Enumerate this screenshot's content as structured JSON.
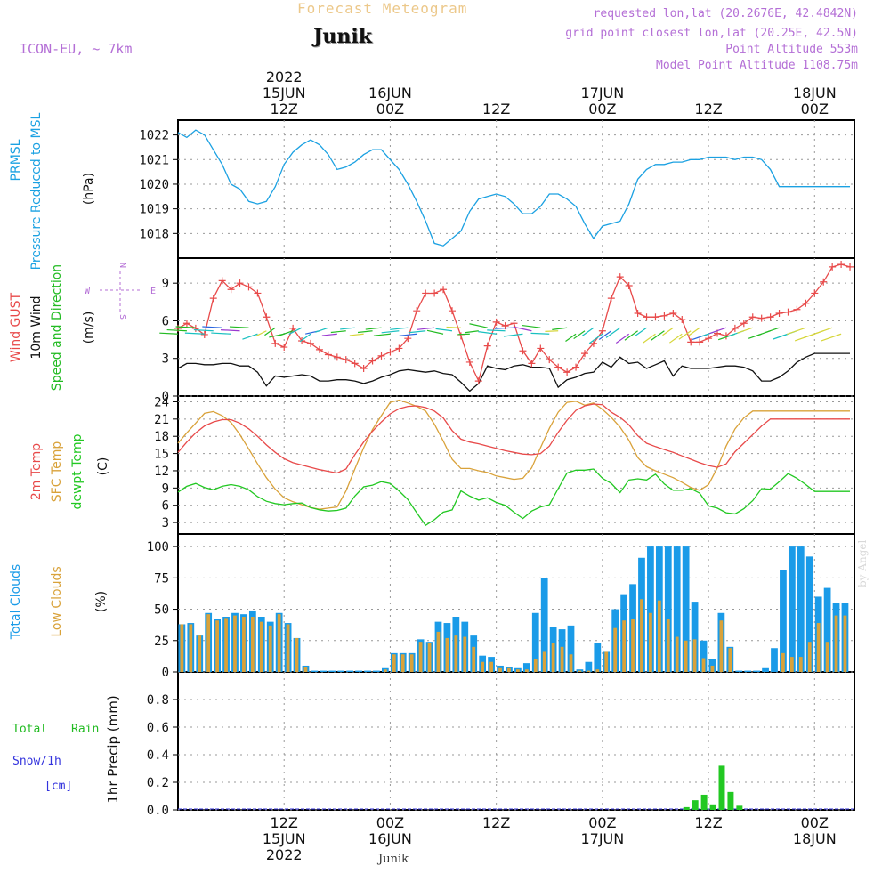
{
  "header": {
    "title": "Forecast Meteogram",
    "station": "Junik",
    "model": "ICON-EU, ~ 7km",
    "requested": "requested lon,lat (20.2676E, 42.4842N)",
    "gridpoint": "grid point closest lon,lat (20.25E, 42.5N)",
    "point_altitude": "Point Altitude 553m",
    "model_altitude": "Model Point Altitude 1108.75m",
    "footer": "Junik",
    "credit": "by Angel"
  },
  "colors": {
    "pressure": "#1ba1e2",
    "gust": "#e84a4a",
    "wind": "#111111",
    "wind_dir": "#22bb22",
    "temp": "#e84a4a",
    "sfc_temp": "#d9a23a",
    "dewpt": "#22c822",
    "total_cloud": "#1a9be8",
    "low_cloud": "#d9a23a",
    "rain": "#22c822",
    "snow": "#3333dd",
    "purple": "#b46fd6"
  },
  "time_axis": {
    "top_labels": [
      {
        "h": 12,
        "l1": "2022",
        "l2": "15JUN",
        "l3": "12Z"
      },
      {
        "h": 24,
        "l1": "",
        "l2": "16JUN",
        "l3": "00Z"
      },
      {
        "h": 36,
        "l1": "",
        "l2": "",
        "l3": "12Z"
      },
      {
        "h": 48,
        "l1": "",
        "l2": "17JUN",
        "l3": "00Z"
      },
      {
        "h": 60,
        "l1": "",
        "l2": "",
        "l3": "12Z"
      },
      {
        "h": 72,
        "l1": "",
        "l2": "18JUN",
        "l3": "00Z"
      }
    ],
    "bottom_labels": [
      {
        "h": 12,
        "l1": "12Z",
        "l2": "15JUN",
        "l3": "2022"
      },
      {
        "h": 24,
        "l1": "00Z",
        "l2": "16JUN",
        "l3": ""
      },
      {
        "h": 36,
        "l1": "12Z",
        "l2": "",
        "l3": ""
      },
      {
        "h": 48,
        "l1": "00Z",
        "l2": "17JUN",
        "l3": ""
      },
      {
        "h": 60,
        "l1": "12Z",
        "l2": "",
        "l3": ""
      },
      {
        "h": 72,
        "l1": "00Z",
        "l2": "18JUN",
        "l3": ""
      }
    ]
  },
  "chart_data": [
    {
      "type": "line",
      "id": "pressure",
      "title": "PRMSL Pressure Reduced to MSL",
      "ylabel": "(hPa)",
      "ylim": [
        1017,
        1022.6
      ],
      "yticks": [
        1018,
        1019,
        1020,
        1021,
        1022
      ],
      "hours": [
        0,
        1,
        2,
        3,
        4,
        5,
        6,
        7,
        8,
        9,
        10,
        11,
        12,
        13,
        14,
        15,
        16,
        17,
        18,
        19,
        20,
        21,
        22,
        23,
        24,
        25,
        26,
        27,
        28,
        29,
        30,
        31,
        32,
        33,
        34,
        35,
        36,
        37,
        38,
        39,
        40,
        41,
        42,
        43,
        44,
        45,
        46,
        47,
        48,
        49,
        50,
        51,
        52,
        53,
        54,
        55,
        56,
        57,
        58,
        59,
        60,
        61,
        62,
        63,
        64,
        65,
        66,
        67,
        68,
        69,
        70,
        71,
        72,
        73,
        74,
        75,
        76
      ],
      "values": [
        1022.1,
        1021.9,
        1022.2,
        1022.0,
        1021.4,
        1020.8,
        1020.0,
        1019.8,
        1019.3,
        1019.2,
        1019.3,
        1019.9,
        1020.8,
        1021.3,
        1021.6,
        1021.8,
        1021.6,
        1021.2,
        1020.6,
        1020.7,
        1020.9,
        1021.2,
        1021.4,
        1021.4,
        1021.0,
        1020.6,
        1020.0,
        1019.3,
        1018.5,
        1017.6,
        1017.5,
        1017.8,
        1018.1,
        1018.9,
        1019.4,
        1019.5,
        1019.6,
        1019.5,
        1019.2,
        1018.8,
        1018.8,
        1019.1,
        1019.6,
        1019.6,
        1019.4,
        1019.1,
        1018.4,
        1017.8,
        1018.3,
        1018.4,
        1018.5,
        1019.2,
        1020.2,
        1020.6,
        1020.8,
        1020.8,
        1020.9,
        1020.9,
        1021.0,
        1021.0,
        1021.1,
        1021.1,
        1021.1,
        1021.0,
        1021.1,
        1021.1,
        1021.0,
        1020.6,
        1019.9,
        1019.9,
        1019.9,
        1019.9,
        1019.9,
        1019.9,
        1019.9,
        1019.9,
        1019.9
      ]
    },
    {
      "type": "line",
      "id": "wind",
      "title": "Wind GUST / 10m Wind Speed and Direction",
      "ylabel": "(m/s)",
      "compass": {
        "n": "N",
        "s": "S",
        "w": "W",
        "e": "E"
      },
      "ylim": [
        0,
        11
      ],
      "yticks": [
        0,
        3,
        6,
        9
      ],
      "hours": [
        0,
        1,
        2,
        3,
        4,
        5,
        6,
        7,
        8,
        9,
        10,
        11,
        12,
        13,
        14,
        15,
        16,
        17,
        18,
        19,
        20,
        21,
        22,
        23,
        24,
        25,
        26,
        27,
        28,
        29,
        30,
        31,
        32,
        33,
        34,
        35,
        36,
        37,
        38,
        39,
        40,
        41,
        42,
        43,
        44,
        45,
        46,
        47,
        48,
        49,
        50,
        51,
        52,
        53,
        54,
        55,
        56,
        57,
        58,
        59,
        60,
        61,
        62,
        63,
        64,
        65,
        66,
        67,
        68,
        69,
        70,
        71,
        72,
        73,
        74,
        75,
        76
      ],
      "gust": [
        5.4,
        5.8,
        5.4,
        4.9,
        7.8,
        9.2,
        8.5,
        9.0,
        8.7,
        8.2,
        6.3,
        4.2,
        3.9,
        5.4,
        4.4,
        4.2,
        3.7,
        3.3,
        3.1,
        2.9,
        2.6,
        2.2,
        2.8,
        3.2,
        3.5,
        3.8,
        4.6,
        6.8,
        8.2,
        8.2,
        8.5,
        6.8,
        4.8,
        2.7,
        1.2,
        4.0,
        5.9,
        5.6,
        5.8,
        3.6,
        2.6,
        3.8,
        2.9,
        2.3,
        1.9,
        2.3,
        3.4,
        4.2,
        5.2,
        7.8,
        9.5,
        8.8,
        6.6,
        6.3,
        6.3,
        6.4,
        6.6,
        6.1,
        4.3,
        4.3,
        4.6,
        5.0,
        4.8,
        5.4,
        5.8,
        6.3,
        6.2,
        6.3,
        6.6,
        6.7,
        6.9,
        7.4,
        8.2,
        9.1,
        10.3,
        10.5,
        10.3
      ],
      "speed": [
        2.2,
        2.6,
        2.6,
        2.5,
        2.5,
        2.6,
        2.6,
        2.4,
        2.4,
        1.9,
        0.8,
        1.6,
        1.5,
        1.6,
        1.7,
        1.6,
        1.2,
        1.2,
        1.3,
        1.3,
        1.2,
        1.0,
        1.2,
        1.5,
        1.7,
        2.0,
        2.1,
        2.0,
        1.9,
        2.0,
        1.8,
        1.7,
        1.1,
        0.4,
        1.0,
        2.4,
        2.2,
        2.1,
        2.4,
        2.5,
        2.3,
        2.3,
        2.2,
        0.7,
        1.3,
        1.5,
        1.8,
        1.9,
        2.7,
        2.3,
        3.1,
        2.6,
        2.7,
        2.2,
        2.5,
        2.8,
        1.6,
        2.4,
        2.2,
        2.2,
        2.2,
        2.3,
        2.4,
        2.4,
        2.3,
        2.0,
        1.2,
        1.2,
        1.5,
        2.0,
        2.7,
        3.1,
        3.4,
        3.4,
        3.4,
        3.4,
        3.4
      ]
    },
    {
      "type": "line",
      "id": "temp",
      "title": "2m Temp / SFC Temp / dewpt Temp",
      "ylabel": "(C)",
      "ylim": [
        1,
        25
      ],
      "yticks": [
        3,
        6,
        9,
        12,
        15,
        18,
        21,
        24
      ],
      "hours": [
        0,
        1,
        2,
        3,
        4,
        5,
        6,
        7,
        8,
        9,
        10,
        11,
        12,
        13,
        14,
        15,
        16,
        17,
        18,
        19,
        20,
        21,
        22,
        23,
        24,
        25,
        26,
        27,
        28,
        29,
        30,
        31,
        32,
        33,
        34,
        35,
        36,
        37,
        38,
        39,
        40,
        41,
        42,
        43,
        44,
        45,
        46,
        47,
        48,
        49,
        50,
        51,
        52,
        53,
        54,
        55,
        56,
        57,
        58,
        59,
        60,
        61,
        62,
        63,
        64,
        65,
        66,
        67,
        68,
        69,
        70,
        71,
        72,
        73,
        74,
        75,
        76
      ],
      "t2m": [
        15.2,
        17.0,
        18.6,
        19.8,
        20.5,
        20.9,
        20.9,
        20.3,
        19.3,
        18.0,
        16.5,
        15.2,
        14.1,
        13.4,
        13.0,
        12.6,
        12.2,
        11.9,
        11.6,
        12.3,
        14.8,
        17.0,
        18.9,
        20.5,
        21.9,
        22.8,
        23.2,
        23.3,
        23.0,
        22.4,
        21.2,
        19.0,
        17.5,
        17.0,
        16.7,
        16.3,
        15.9,
        15.5,
        15.2,
        14.9,
        14.8,
        15.0,
        16.3,
        18.7,
        20.8,
        22.5,
        23.3,
        23.6,
        23.5,
        22.2,
        21.3,
        20.0,
        18.1,
        16.8,
        16.2,
        15.7,
        15.2,
        14.6,
        14.0,
        13.4,
        12.9,
        12.6,
        13.2,
        15.3,
        16.8,
        18.3,
        19.8,
        21.0,
        21.0,
        21.0,
        21.0,
        21.0,
        21.0,
        21.0,
        21.0,
        21.0,
        21.0
      ],
      "sfc": [
        16.8,
        18.6,
        20.3,
        22.0,
        22.3,
        21.6,
        20.4,
        18.3,
        15.8,
        13.2,
        10.8,
        8.8,
        7.3,
        6.6,
        6.1,
        5.6,
        5.3,
        5.5,
        5.7,
        8.5,
        12.3,
        16.0,
        19.2,
        21.6,
        23.9,
        24.3,
        23.8,
        23.2,
        22.4,
        20.1,
        17.2,
        14.0,
        12.4,
        12.4,
        12.0,
        11.7,
        11.1,
        10.8,
        10.5,
        10.7,
        12.5,
        16.0,
        19.4,
        22.2,
        23.9,
        24.1,
        23.4,
        23.8,
        22.7,
        21.3,
        19.6,
        17.3,
        14.3,
        12.7,
        12.0,
        11.4,
        10.8,
        10.0,
        9.1,
        8.6,
        9.6,
        12.5,
        16.3,
        19.3,
        21.2,
        22.4,
        22.4,
        22.4,
        22.4,
        22.4,
        22.4,
        22.4,
        22.4,
        22.4,
        22.4,
        22.4,
        22.4
      ],
      "dewpt": [
        8.3,
        9.3,
        9.8,
        9.1,
        8.7,
        9.3,
        9.6,
        9.3,
        8.7,
        7.5,
        6.7,
        6.3,
        6.1,
        6.3,
        6.4,
        5.6,
        5.2,
        5.0,
        5.1,
        5.5,
        7.6,
        9.2,
        9.5,
        10.1,
        9.8,
        8.5,
        7.0,
        4.7,
        2.5,
        3.5,
        4.8,
        5.2,
        8.5,
        7.6,
        6.9,
        7.3,
        6.5,
        6.0,
        4.8,
        3.7,
        5.0,
        5.7,
        6.1,
        8.9,
        11.6,
        12.1,
        12.1,
        12.3,
        10.7,
        9.8,
        8.2,
        10.4,
        10.6,
        10.4,
        11.4,
        9.7,
        8.6,
        8.6,
        8.9,
        8.1,
        5.9,
        5.5,
        4.7,
        4.5,
        5.4,
        6.8,
        8.9,
        8.8,
        10.1,
        11.5,
        10.7,
        9.6,
        8.4,
        8.4,
        8.4,
        8.4,
        8.4
      ]
    },
    {
      "type": "bar",
      "id": "clouds",
      "title": "Total Clouds / Low Clouds",
      "ylabel": "(%)",
      "ylim": [
        0,
        110
      ],
      "yticks": [
        0,
        25,
        50,
        75,
        100
      ],
      "hours": [
        0,
        1,
        2,
        3,
        4,
        5,
        6,
        7,
        8,
        9,
        10,
        11,
        12,
        13,
        14,
        15,
        16,
        17,
        18,
        19,
        20,
        21,
        22,
        23,
        24,
        25,
        26,
        27,
        28,
        29,
        30,
        31,
        32,
        33,
        34,
        35,
        36,
        37,
        38,
        39,
        40,
        41,
        42,
        43,
        44,
        45,
        46,
        47,
        48,
        49,
        50,
        51,
        52,
        53,
        54,
        55,
        56,
        57,
        58,
        59,
        60,
        61,
        62,
        63,
        64,
        65,
        66,
        67,
        68,
        69,
        70,
        71,
        72,
        73,
        74,
        75
      ],
      "total": [
        38,
        39,
        29,
        47,
        42,
        44,
        47,
        46,
        49,
        44,
        40,
        47,
        39,
        27,
        5,
        1,
        1,
        1,
        1,
        1,
        1,
        1,
        1,
        3,
        15,
        15,
        15,
        26,
        24,
        40,
        39,
        44,
        40,
        29,
        13,
        12,
        5,
        4,
        3,
        7,
        47,
        75,
        36,
        34,
        37,
        2,
        8,
        23,
        16,
        50,
        62,
        70,
        91,
        100,
        100,
        100,
        100,
        100,
        56,
        25,
        10,
        47,
        20,
        1,
        1,
        1,
        3,
        19,
        81,
        100,
        100,
        92,
        60,
        67,
        55,
        55
      ],
      "low": [
        38,
        38,
        29,
        46,
        41,
        43,
        45,
        44,
        44,
        40,
        37,
        46,
        38,
        27,
        4,
        0,
        0,
        0,
        0,
        0,
        0,
        0,
        0,
        2,
        14,
        14,
        14,
        24,
        23,
        32,
        27,
        29,
        28,
        20,
        8,
        8,
        3,
        3,
        2,
        2,
        10,
        16,
        23,
        20,
        14,
        1,
        1,
        2,
        16,
        35,
        41,
        42,
        58,
        47,
        57,
        42,
        28,
        25,
        26,
        11,
        5,
        41,
        19,
        0,
        0,
        0,
        0,
        0,
        15,
        12,
        12,
        24,
        39,
        24,
        45,
        45
      ]
    },
    {
      "type": "bar",
      "id": "precip",
      "title": "Total Rain / Snow/1h [cm]",
      "ylabel": "1hr Precip (mm)",
      "legend_total": "Total",
      "legend_rain": "Rain",
      "legend_snow": "Snow/1h",
      "legend_cm": "[cm]",
      "ylim": [
        0,
        1.0
      ],
      "yticks": [
        0,
        0.2,
        0.4,
        0.6,
        0.8
      ],
      "hours": [
        57,
        58,
        59,
        60,
        61,
        62,
        63
      ],
      "rain": [
        0.02,
        0.07,
        0.11,
        0.04,
        0.32,
        0.13,
        0.03
      ],
      "snow": [
        0,
        0,
        0,
        0,
        0,
        0,
        0
      ]
    }
  ]
}
